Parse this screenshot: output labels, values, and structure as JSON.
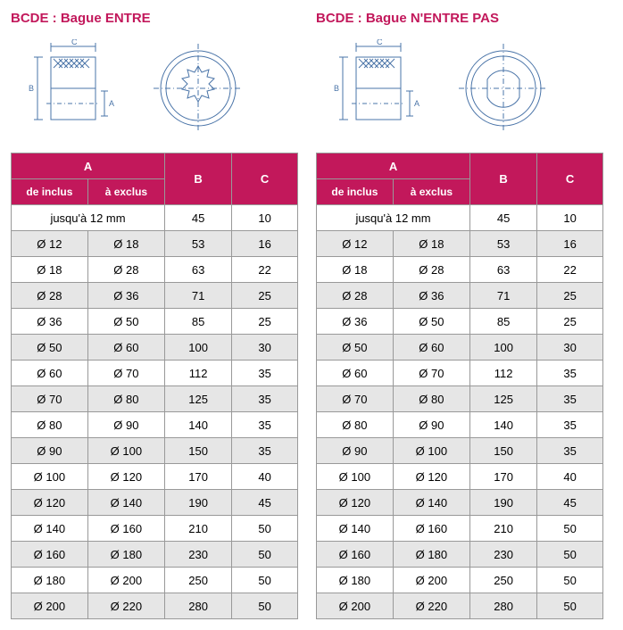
{
  "colors": {
    "accent": "#c2185b",
    "row_alt": "#e6e6e6",
    "row_base": "#ffffff",
    "border": "#999999",
    "tech_blue": "#4a74a8"
  },
  "left": {
    "title": "BCDE : Bague ENTRE",
    "headers": {
      "A": "A",
      "de": "de inclus",
      "a": "à exclus",
      "B": "B",
      "C": "C"
    },
    "first_row": {
      "label": "jusqu'à 12 mm",
      "B": "45",
      "C": "10"
    },
    "rows": [
      {
        "de": "Ø 12",
        "a": "Ø 18",
        "B": "53",
        "C": "16"
      },
      {
        "de": "Ø 18",
        "a": "Ø 28",
        "B": "63",
        "C": "22"
      },
      {
        "de": "Ø 28",
        "a": "Ø 36",
        "B": "71",
        "C": "25"
      },
      {
        "de": "Ø 36",
        "a": "Ø 50",
        "B": "85",
        "C": "25"
      },
      {
        "de": "Ø 50",
        "a": "Ø 60",
        "B": "100",
        "C": "30"
      },
      {
        "de": "Ø 60",
        "a": "Ø 70",
        "B": "112",
        "C": "35"
      },
      {
        "de": "Ø 70",
        "a": "Ø 80",
        "B": "125",
        "C": "35"
      },
      {
        "de": "Ø 80",
        "a": "Ø 90",
        "B": "140",
        "C": "35"
      },
      {
        "de": "Ø 90",
        "a": "Ø 100",
        "B": "150",
        "C": "35"
      },
      {
        "de": "Ø 100",
        "a": "Ø 120",
        "B": "170",
        "C": "40"
      },
      {
        "de": "Ø 120",
        "a": "Ø 140",
        "B": "190",
        "C": "45"
      },
      {
        "de": "Ø 140",
        "a": "Ø 160",
        "B": "210",
        "C": "50"
      },
      {
        "de": "Ø 160",
        "a": "Ø 180",
        "B": "230",
        "C": "50"
      },
      {
        "de": "Ø 180",
        "a": "Ø 200",
        "B": "250",
        "C": "50"
      },
      {
        "de": "Ø 200",
        "a": "Ø 220",
        "B": "280",
        "C": "50"
      }
    ],
    "diagram": {
      "type": "technical-drawing",
      "view1": "side-cross-section-knurled-bushing",
      "view2": "front-face-splined-bore",
      "dim_labels": [
        "A",
        "B",
        "C"
      ],
      "stroke": "#4a74a8",
      "stroke_width": 1
    }
  },
  "right": {
    "title": "BCDE : Bague N'ENTRE PAS",
    "headers": {
      "A": "A",
      "de": "de inclus",
      "a": "à exclus",
      "B": "B",
      "C": "C"
    },
    "first_row": {
      "label": "jusqu'à 12 mm",
      "B": "45",
      "C": "10"
    },
    "rows": [
      {
        "de": "Ø 12",
        "a": "Ø 18",
        "B": "53",
        "C": "16"
      },
      {
        "de": "Ø 18",
        "a": "Ø 28",
        "B": "63",
        "C": "22"
      },
      {
        "de": "Ø 28",
        "a": "Ø 36",
        "B": "71",
        "C": "25"
      },
      {
        "de": "Ø 36",
        "a": "Ø 50",
        "B": "85",
        "C": "25"
      },
      {
        "de": "Ø 50",
        "a": "Ø 60",
        "B": "100",
        "C": "30"
      },
      {
        "de": "Ø 60",
        "a": "Ø 70",
        "B": "112",
        "C": "35"
      },
      {
        "de": "Ø 70",
        "a": "Ø 80",
        "B": "125",
        "C": "35"
      },
      {
        "de": "Ø 80",
        "a": "Ø 90",
        "B": "140",
        "C": "35"
      },
      {
        "de": "Ø 90",
        "a": "Ø 100",
        "B": "150",
        "C": "35"
      },
      {
        "de": "Ø 100",
        "a": "Ø 120",
        "B": "170",
        "C": "40"
      },
      {
        "de": "Ø 120",
        "a": "Ø 140",
        "B": "190",
        "C": "45"
      },
      {
        "de": "Ø 140",
        "a": "Ø 160",
        "B": "210",
        "C": "50"
      },
      {
        "de": "Ø 160",
        "a": "Ø 180",
        "B": "230",
        "C": "50"
      },
      {
        "de": "Ø 180",
        "a": "Ø 200",
        "B": "250",
        "C": "50"
      },
      {
        "de": "Ø 200",
        "a": "Ø 220",
        "B": "280",
        "C": "50"
      }
    ],
    "diagram": {
      "type": "technical-drawing",
      "view1": "side-cross-section-knurled-bushing",
      "view2": "front-face-plain-bore-with-flats",
      "dim_labels": [
        "A",
        "B",
        "C"
      ],
      "stroke": "#4a74a8",
      "stroke_width": 1
    }
  }
}
